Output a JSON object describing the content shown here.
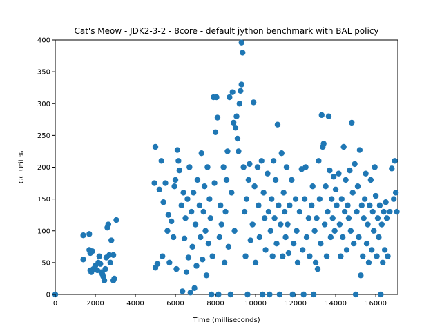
{
  "chart_data": {
    "type": "scatter",
    "title": "Cat's Meow - JDK2-3-2 - 8core -  default jython benchmark with BAL policy",
    "xlabel": "Time (milliseconds)",
    "ylabel": "GC Util %",
    "xlim": [
      0,
      17100
    ],
    "ylim": [
      0,
      400
    ],
    "xticks": [
      0,
      2000,
      4000,
      6000,
      8000,
      10000,
      12000,
      14000,
      16000
    ],
    "yticks": [
      0,
      50,
      100,
      150,
      200,
      250,
      300,
      350,
      400
    ],
    "grid": false,
    "marker_color": "#1f77b4",
    "series": [
      {
        "points": [
          [
            0,
            0
          ],
          [
            1400,
            55
          ],
          [
            1400,
            93
          ],
          [
            1700,
            95
          ],
          [
            1700,
            70
          ],
          [
            1750,
            65
          ],
          [
            1750,
            38
          ],
          [
            1800,
            35
          ],
          [
            1850,
            68
          ],
          [
            1900,
            40
          ],
          [
            2000,
            45
          ],
          [
            2100,
            38
          ],
          [
            2150,
            50
          ],
          [
            2200,
            60
          ],
          [
            2250,
            48
          ],
          [
            2300,
            35
          ],
          [
            2350,
            32
          ],
          [
            2400,
            28
          ],
          [
            2450,
            22
          ],
          [
            2500,
            40
          ],
          [
            2550,
            58
          ],
          [
            2600,
            105
          ],
          [
            2650,
            110
          ],
          [
            2700,
            62
          ],
          [
            2750,
            50
          ],
          [
            2800,
            85
          ],
          [
            2900,
            62
          ],
          [
            2900,
            22
          ],
          [
            2950,
            25
          ],
          [
            3050,
            117
          ],
          [
            4950,
            175
          ],
          [
            5000,
            232
          ],
          [
            5000,
            42
          ],
          [
            5100,
            48
          ],
          [
            5200,
            165
          ],
          [
            5300,
            210
          ],
          [
            5350,
            60
          ],
          [
            5400,
            145
          ],
          [
            5500,
            175
          ],
          [
            5600,
            100
          ],
          [
            5650,
            125
          ],
          [
            5700,
            50
          ],
          [
            5800,
            115
          ],
          [
            5900,
            90
          ],
          [
            5950,
            170
          ],
          [
            6000,
            180
          ],
          [
            6050,
            40
          ],
          [
            6100,
            227
          ],
          [
            6150,
            210
          ],
          [
            6200,
            195
          ],
          [
            6300,
            140
          ],
          [
            6350,
            5
          ],
          [
            6400,
            160
          ],
          [
            6450,
            88
          ],
          [
            6500,
            120
          ],
          [
            6550,
            35
          ],
          [
            6600,
            150
          ],
          [
            6650,
            58
          ],
          [
            6700,
            200
          ],
          [
            6750,
            3
          ],
          [
            6800,
            130
          ],
          [
            6850,
            75
          ],
          [
            6900,
            160
          ],
          [
            6950,
            10
          ],
          [
            7000,
            110
          ],
          [
            7050,
            45
          ],
          [
            7100,
            180
          ],
          [
            7200,
            140
          ],
          [
            7250,
            90
          ],
          [
            7300,
            222
          ],
          [
            7350,
            55
          ],
          [
            7400,
            130
          ],
          [
            7450,
            170
          ],
          [
            7500,
            100
          ],
          [
            7550,
            30
          ],
          [
            7600,
            200
          ],
          [
            7650,
            80
          ],
          [
            7700,
            150
          ],
          [
            7750,
            120
          ],
          [
            7800,
            0
          ],
          [
            7850,
            60
          ],
          [
            7900,
            310
          ],
          [
            7950,
            175
          ],
          [
            8000,
            255
          ],
          [
            8050,
            310
          ],
          [
            8100,
            278
          ],
          [
            8150,
            0
          ],
          [
            8200,
            90
          ],
          [
            8250,
            140
          ],
          [
            8300,
            110
          ],
          [
            8400,
            200
          ],
          [
            8450,
            50
          ],
          [
            8500,
            130
          ],
          [
            8550,
            180
          ],
          [
            8600,
            225
          ],
          [
            8650,
            75
          ],
          [
            8700,
            310
          ],
          [
            8750,
            0
          ],
          [
            8800,
            160
          ],
          [
            8850,
            318
          ],
          [
            8900,
            270
          ],
          [
            8950,
            100
          ],
          [
            9000,
            262
          ],
          [
            9050,
            280
          ],
          [
            9100,
            245
          ],
          [
            9150,
            225
          ],
          [
            9200,
            300
          ],
          [
            9250,
            320
          ],
          [
            9300,
            330
          ],
          [
            9300,
            396
          ],
          [
            9350,
            380
          ],
          [
            9400,
            200
          ],
          [
            9450,
            130
          ],
          [
            9500,
            60
          ],
          [
            9550,
            150
          ],
          [
            9600,
            0
          ],
          [
            9650,
            180
          ],
          [
            9700,
            205
          ],
          [
            9750,
            85
          ],
          [
            9850,
            110
          ],
          [
            9900,
            302
          ],
          [
            9950,
            170
          ],
          [
            10000,
            50
          ],
          [
            10100,
            200
          ],
          [
            10150,
            140
          ],
          [
            10200,
            90
          ],
          [
            10300,
            210
          ],
          [
            10350,
            0
          ],
          [
            10400,
            160
          ],
          [
            10450,
            120
          ],
          [
            10500,
            70
          ],
          [
            10600,
            190
          ],
          [
            10650,
            130
          ],
          [
            10700,
            0
          ],
          [
            10750,
            100
          ],
          [
            10800,
            150
          ],
          [
            10850,
            60
          ],
          [
            10900,
            210
          ],
          [
            10950,
            120
          ],
          [
            11000,
            180
          ],
          [
            11050,
            80
          ],
          [
            11100,
            267
          ],
          [
            11150,
            140
          ],
          [
            11200,
            0
          ],
          [
            11250,
            110
          ],
          [
            11300,
            222
          ],
          [
            11350,
            60
          ],
          [
            11400,
            160
          ],
          [
            11450,
            130
          ],
          [
            11500,
            90
          ],
          [
            11550,
            200
          ],
          [
            11600,
            110
          ],
          [
            11650,
            65
          ],
          [
            11700,
            140
          ],
          [
            11800,
            180
          ],
          [
            11850,
            0
          ],
          [
            11900,
            80
          ],
          [
            12000,
            150
          ],
          [
            12050,
            100
          ],
          [
            12100,
            50
          ],
          [
            12200,
            130
          ],
          [
            12300,
            197
          ],
          [
            12350,
            70
          ],
          [
            12400,
            0
          ],
          [
            12450,
            150
          ],
          [
            12500,
            200
          ],
          [
            12550,
            90
          ],
          [
            12650,
            120
          ],
          [
            12700,
            60
          ],
          [
            12800,
            140
          ],
          [
            12850,
            170
          ],
          [
            12900,
            0
          ],
          [
            12950,
            100
          ],
          [
            13000,
            50
          ],
          [
            13050,
            120
          ],
          [
            13100,
            40
          ],
          [
            13150,
            210
          ],
          [
            13200,
            150
          ],
          [
            13250,
            80
          ],
          [
            13300,
            282
          ],
          [
            13350,
            232
          ],
          [
            13400,
            237
          ],
          [
            13450,
            110
          ],
          [
            13500,
            170
          ],
          [
            13550,
            60
          ],
          [
            13600,
            130
          ],
          [
            13650,
            280
          ],
          [
            13700,
            195
          ],
          [
            13750,
            90
          ],
          [
            13800,
            150
          ],
          [
            13850,
            120
          ],
          [
            13900,
            185
          ],
          [
            13950,
            100
          ],
          [
            14000,
            165
          ],
          [
            14050,
            140
          ],
          [
            14150,
            190
          ],
          [
            14200,
            110
          ],
          [
            14250,
            60
          ],
          [
            14300,
            150
          ],
          [
            14350,
            90
          ],
          [
            14400,
            232
          ],
          [
            14450,
            130
          ],
          [
            14500,
            180
          ],
          [
            14550,
            70
          ],
          [
            14600,
            140
          ],
          [
            14650,
            120
          ],
          [
            14700,
            195
          ],
          [
            14750,
            100
          ],
          [
            14800,
            270
          ],
          [
            14850,
            160
          ],
          [
            14900,
            80
          ],
          [
            14950,
            205
          ],
          [
            15000,
            0
          ],
          [
            15050,
            130
          ],
          [
            15100,
            170
          ],
          [
            15150,
            90
          ],
          [
            15200,
            227
          ],
          [
            15250,
            30
          ],
          [
            15300,
            140
          ],
          [
            15350,
            60
          ],
          [
            15400,
            120
          ],
          [
            15450,
            150
          ],
          [
            15500,
            190
          ],
          [
            15550,
            80
          ],
          [
            15600,
            110
          ],
          [
            15650,
            50
          ],
          [
            15700,
            140
          ],
          [
            15750,
            180
          ],
          [
            15800,
            70
          ],
          [
            15850,
            130
          ],
          [
            15900,
            100
          ],
          [
            15950,
            200
          ],
          [
            16000,
            155
          ],
          [
            16050,
            60
          ],
          [
            16100,
            120
          ],
          [
            16150,
            90
          ],
          [
            16200,
            140
          ],
          [
            16250,
            0
          ],
          [
            16300,
            110
          ],
          [
            16350,
            50
          ],
          [
            16400,
            130
          ],
          [
            16450,
            70
          ],
          [
            16500,
            145
          ],
          [
            16550,
            120
          ],
          [
            16600,
            60
          ],
          [
            16700,
            130
          ],
          [
            16800,
            198
          ],
          [
            16900,
            150
          ],
          [
            16950,
            210
          ],
          [
            17000,
            160
          ],
          [
            17050,
            130
          ]
        ]
      }
    ]
  }
}
